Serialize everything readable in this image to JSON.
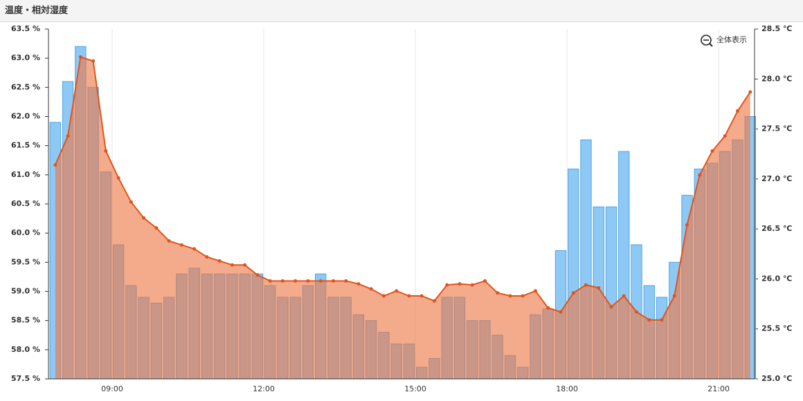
{
  "header": {
    "title": "温度・相対湿度"
  },
  "toolbar": {
    "reset_zoom": "全体表示"
  },
  "chart_data": {
    "type": "bar-line",
    "x": [
      7.875,
      8.125,
      8.375,
      8.625,
      8.875,
      9.125,
      9.375,
      9.625,
      9.875,
      10.125,
      10.375,
      10.625,
      10.875,
      11.125,
      11.375,
      11.625,
      11.875,
      12.125,
      12.375,
      12.625,
      12.875,
      13.125,
      13.375,
      13.625,
      13.875,
      14.125,
      14.375,
      14.625,
      14.875,
      15.125,
      15.375,
      15.625,
      15.875,
      16.125,
      16.375,
      16.625,
      16.875,
      17.125,
      17.375,
      17.625,
      17.875,
      18.125,
      18.375,
      18.625,
      18.875,
      19.125,
      19.375,
      19.625,
      19.875,
      20.125,
      20.375,
      20.625,
      20.875,
      21.125,
      21.375,
      21.625
    ],
    "series": [
      {
        "type": "bar",
        "color": "#8ec9f5",
        "values": [
          61.9,
          62.6,
          63.2,
          62.5,
          61.05,
          59.8,
          59.1,
          58.9,
          58.8,
          58.9,
          59.3,
          59.4,
          59.3,
          59.3,
          59.3,
          59.3,
          59.3,
          59.1,
          58.9,
          58.9,
          59.1,
          59.3,
          58.9,
          58.9,
          58.6,
          58.5,
          58.3,
          58.1,
          58.1,
          57.7,
          57.85,
          58.9,
          58.9,
          58.5,
          58.5,
          58.25,
          57.9,
          57.7,
          58.6,
          58.7,
          59.7,
          61.1,
          61.6,
          60.45,
          60.45,
          61.4,
          59.8,
          59.1,
          58.9,
          59.5,
          60.65,
          61.1,
          61.2,
          61.4,
          61.6,
          62.0
        ]
      },
      {
        "type": "line",
        "axis": "y2",
        "color": "#e0541a",
        "values": [
          27.14,
          27.43,
          28.22,
          28.18,
          27.28,
          27.01,
          26.77,
          26.61,
          26.51,
          26.38,
          26.34,
          26.3,
          26.22,
          26.18,
          26.14,
          26.14,
          26.04,
          25.98,
          25.98,
          25.98,
          25.98,
          25.98,
          25.98,
          25.98,
          25.95,
          25.9,
          25.83,
          25.88,
          25.83,
          25.83,
          25.78,
          25.94,
          25.95,
          25.94,
          25.98,
          25.86,
          25.83,
          25.83,
          25.88,
          25.71,
          25.67,
          25.86,
          25.94,
          25.91,
          25.72,
          25.83,
          25.67,
          25.59,
          25.59,
          25.83,
          26.54,
          27.04,
          27.28,
          27.43,
          27.68,
          27.87
        ]
      }
    ],
    "xlim": [
      7.74,
      21.71
    ],
    "xticks": [
      {
        "value": 9,
        "label": "09:00"
      },
      {
        "value": 12,
        "label": "12:00"
      },
      {
        "value": 15,
        "label": "15:00"
      },
      {
        "value": 18,
        "label": "18:00"
      },
      {
        "value": 21,
        "label": "21:00"
      }
    ],
    "ylim": [
      57.5,
      63.5
    ],
    "yticks": [
      {
        "value": 57.5,
        "label": "57.5 %"
      },
      {
        "value": 58,
        "label": "58.0 %"
      },
      {
        "value": 58.5,
        "label": "58.5 %"
      },
      {
        "value": 59,
        "label": "59.0 %"
      },
      {
        "value": 59.5,
        "label": "59.5 %"
      },
      {
        "value": 60,
        "label": "60.0 %"
      },
      {
        "value": 60.5,
        "label": "60.5 %"
      },
      {
        "value": 61,
        "label": "61.0 %"
      },
      {
        "value": 61.5,
        "label": "61.5 %"
      },
      {
        "value": 62,
        "label": "62.0 %"
      },
      {
        "value": 62.5,
        "label": "62.5 %"
      },
      {
        "value": 63,
        "label": "63.0 %"
      },
      {
        "value": 63.5,
        "label": "63.5 %"
      }
    ],
    "y2lim": [
      25.0,
      28.5
    ],
    "y2ticks": [
      {
        "value": 25,
        "label": "25.0 ℃"
      },
      {
        "value": 25.5,
        "label": "25.5 ℃"
      },
      {
        "value": 26,
        "label": "26.0 ℃"
      },
      {
        "value": 26.5,
        "label": "26.5 ℃"
      },
      {
        "value": 27,
        "label": "27.0 ℃"
      },
      {
        "value": 27.5,
        "label": "27.5 ℃"
      },
      {
        "value": 28,
        "label": "28.0 ℃"
      },
      {
        "value": 28.5,
        "label": "28.5 ℃"
      }
    ],
    "grid": true
  }
}
